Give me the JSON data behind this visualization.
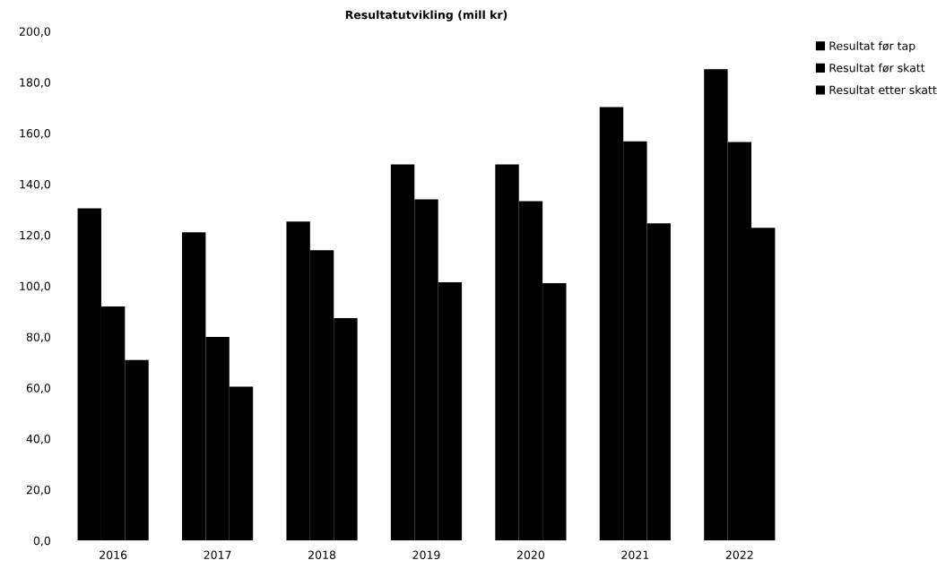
{
  "chart_data": {
    "type": "bar",
    "title": "Resultatutvikling (mill kr)",
    "categories": [
      "2016",
      "2017",
      "2018",
      "2019",
      "2020",
      "2021",
      "2022"
    ],
    "series": [
      {
        "name": "Resultat før tap",
        "color": "#000000",
        "values": [
          130.5,
          121.1,
          125.3,
          147.7,
          147.7,
          170.2,
          185.1
        ]
      },
      {
        "name": "Resultat før skatt",
        "color": "#000000",
        "values": [
          91.9,
          80.0,
          114.0,
          134.0,
          133.3,
          156.8,
          156.5
        ]
      },
      {
        "name": "Resultat etter skatt",
        "color": "#000000",
        "values": [
          70.9,
          60.4,
          87.4,
          101.4,
          101.1,
          124.6,
          122.8
        ]
      }
    ],
    "ylim": [
      0,
      200
    ],
    "yticks": [
      {
        "value": 0,
        "label": "0,0"
      },
      {
        "value": 20,
        "label": "20,0"
      },
      {
        "value": 40,
        "label": "40,0"
      },
      {
        "value": 60,
        "label": "60,0"
      },
      {
        "value": 80,
        "label": "80,0"
      },
      {
        "value": 100,
        "label": "100,0"
      },
      {
        "value": 120,
        "label": "120,0"
      },
      {
        "value": 140,
        "label": "140,0"
      },
      {
        "value": 160,
        "label": "160,0"
      },
      {
        "value": 180,
        "label": "180,0"
      },
      {
        "value": 200,
        "label": "200,0"
      }
    ],
    "legend": "top right"
  }
}
